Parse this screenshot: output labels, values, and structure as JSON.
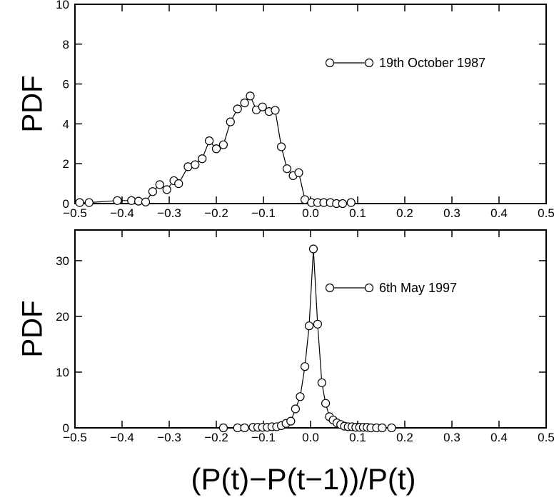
{
  "chart_data": [
    {
      "type": "line",
      "ylabel": "PDF",
      "xlim": [
        -0.5,
        0.5
      ],
      "ylim": [
        0,
        10
      ],
      "xticks": [
        "−0.5",
        "−0.4",
        "−0.3",
        "−0.2",
        "−0.1",
        "0.0",
        "0.1",
        "0.2",
        "0.3",
        "0.4",
        "0.5"
      ],
      "yticks": [
        "0",
        "2",
        "4",
        "6",
        "8",
        "10"
      ],
      "legend_position": "top-right",
      "marker": "open-circle",
      "series": [
        {
          "name": "19th October 1987",
          "x": [
            -0.49,
            -0.47,
            -0.41,
            -0.38,
            -0.365,
            -0.35,
            -0.335,
            -0.32,
            -0.305,
            -0.29,
            -0.28,
            -0.26,
            -0.245,
            -0.23,
            -0.215,
            -0.2,
            -0.185,
            -0.17,
            -0.155,
            -0.14,
            -0.128,
            -0.115,
            -0.102,
            -0.088,
            -0.075,
            -0.062,
            -0.05,
            -0.037,
            -0.025,
            -0.012,
            0.002,
            0.015,
            0.028,
            0.042,
            0.055,
            0.068,
            0.086
          ],
          "y": [
            0.05,
            0.05,
            0.15,
            0.15,
            0.12,
            0.08,
            0.6,
            0.95,
            0.7,
            1.15,
            1.0,
            1.85,
            1.95,
            2.25,
            3.15,
            2.75,
            2.95,
            4.1,
            4.75,
            5.05,
            5.4,
            4.7,
            4.85,
            4.62,
            4.68,
            2.85,
            1.75,
            1.4,
            1.55,
            0.2,
            0.05,
            0.05,
            0.05,
            0.05,
            0.0,
            0.0,
            0.05
          ]
        }
      ]
    },
    {
      "type": "line",
      "ylabel": "PDF",
      "xlabel": "(P(t)−P(t−1))/P(t)",
      "xlim": [
        -0.5,
        0.5
      ],
      "ylim": [
        0,
        35.5
      ],
      "xticks": [
        "−0.5",
        "−0.4",
        "−0.3",
        "−0.2",
        "−0.1",
        "0.0",
        "0.1",
        "0.2",
        "0.3",
        "0.4",
        "0.5"
      ],
      "yticks": [
        "0",
        "10",
        "20",
        "30"
      ],
      "legend_position": "top-right",
      "marker": "open-circle",
      "series": [
        {
          "name": "6th May 1997",
          "x": [
            -0.185,
            -0.155,
            -0.14,
            -0.122,
            -0.112,
            -0.102,
            -0.092,
            -0.082,
            -0.072,
            -0.062,
            -0.052,
            -0.042,
            -0.032,
            -0.022,
            -0.012,
            -0.003,
            0.006,
            0.015,
            0.024,
            0.032,
            0.04,
            0.048,
            0.056,
            0.064,
            0.072,
            0.08,
            0.088,
            0.096,
            0.104,
            0.112,
            0.12,
            0.128,
            0.14,
            0.152,
            0.172
          ],
          "y": [
            0.0,
            0.0,
            0.0,
            0.1,
            0.1,
            0.1,
            0.1,
            0.2,
            0.2,
            0.4,
            0.8,
            1.2,
            3.4,
            5.6,
            11.0,
            18.3,
            32.1,
            18.6,
            8.1,
            4.4,
            2.0,
            1.4,
            0.9,
            0.6,
            0.3,
            0.2,
            0.2,
            0.1,
            0.1,
            0.1,
            0.1,
            0.0,
            0.0,
            0.0,
            0.0
          ]
        }
      ]
    }
  ]
}
